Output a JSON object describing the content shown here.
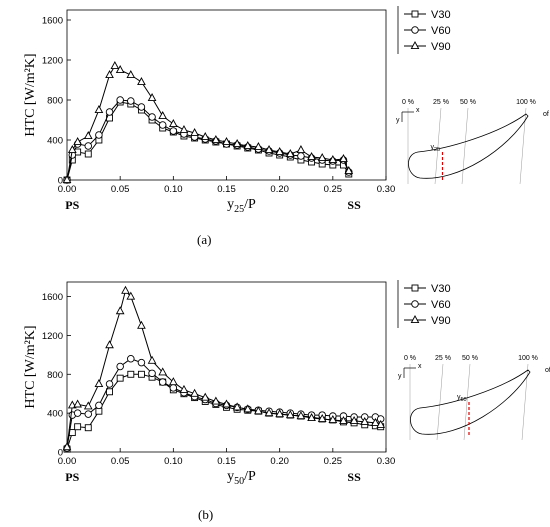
{
  "chart_data": [
    {
      "type": "line",
      "panel_label": "(a)",
      "ylabel": "HTC [W/m²K]",
      "xlabel_main": "y",
      "xlabel_sub": "25",
      "xlabel_tail": "/P",
      "ps_label": "PS",
      "ss_label": "SS",
      "xlim": [
        0,
        0.3
      ],
      "ylim": [
        0,
        1700
      ],
      "xticks": [
        "0.00",
        "0.05",
        "0.10",
        "0.15",
        "0.20",
        "0.25",
        "0.30"
      ],
      "yticks": [
        "0",
        "400",
        "800",
        "1200",
        "1600"
      ],
      "series": [
        {
          "name": "V30",
          "marker": "square",
          "x": [
            0,
            0.005,
            0.01,
            0.02,
            0.03,
            0.04,
            0.05,
            0.06,
            0.07,
            0.08,
            0.09,
            0.1,
            0.11,
            0.12,
            0.13,
            0.14,
            0.15,
            0.16,
            0.17,
            0.18,
            0.19,
            0.2,
            0.21,
            0.22,
            0.23,
            0.24,
            0.25,
            0.26,
            0.265
          ],
          "y": [
            0,
            200,
            280,
            260,
            400,
            620,
            780,
            760,
            700,
            600,
            520,
            480,
            440,
            420,
            400,
            380,
            360,
            340,
            320,
            300,
            270,
            250,
            230,
            200,
            180,
            160,
            150,
            150,
            60
          ]
        },
        {
          "name": "V60",
          "marker": "circle",
          "x": [
            0,
            0.005,
            0.01,
            0.02,
            0.03,
            0.04,
            0.05,
            0.06,
            0.07,
            0.08,
            0.09,
            0.1,
            0.11,
            0.12,
            0.13,
            0.14,
            0.15,
            0.16,
            0.17,
            0.18,
            0.19,
            0.2,
            0.21,
            0.22,
            0.23,
            0.24,
            0.25,
            0.26,
            0.265
          ],
          "y": [
            0,
            250,
            360,
            340,
            450,
            680,
            800,
            790,
            730,
            630,
            550,
            490,
            460,
            430,
            410,
            390,
            360,
            350,
            330,
            310,
            290,
            270,
            250,
            240,
            220,
            200,
            190,
            200,
            80
          ]
        },
        {
          "name": "V90",
          "marker": "triangle",
          "x": [
            0,
            0.005,
            0.01,
            0.02,
            0.03,
            0.04,
            0.045,
            0.05,
            0.06,
            0.07,
            0.08,
            0.09,
            0.1,
            0.11,
            0.12,
            0.13,
            0.14,
            0.15,
            0.16,
            0.17,
            0.18,
            0.19,
            0.2,
            0.21,
            0.22,
            0.23,
            0.24,
            0.25,
            0.26,
            0.265
          ],
          "y": [
            0,
            300,
            380,
            440,
            700,
            1050,
            1140,
            1100,
            1050,
            980,
            820,
            640,
            560,
            500,
            470,
            430,
            400,
            380,
            360,
            340,
            330,
            300,
            280,
            260,
            300,
            230,
            220,
            200,
            210,
            90
          ]
        }
      ],
      "inset": {
        "pct_labels": [
          "0 %",
          "25 %",
          "50 %",
          "100 %"
        ],
        "of_label": "of C",
        "of_sub": "x",
        "y_axis": "y",
        "x_axis": "x",
        "cut_label": "y",
        "cut_sub": "25",
        "cut_fraction": 0.25
      }
    },
    {
      "type": "line",
      "panel_label": "(b)",
      "ylabel": "HTC [W/m²K]",
      "xlabel_main": "y",
      "xlabel_sub": "50",
      "xlabel_tail": "/P",
      "ps_label": "PS",
      "ss_label": "SS",
      "xlim": [
        0,
        0.3
      ],
      "ylim": [
        0,
        1750
      ],
      "xticks": [
        "0.00",
        "0.05",
        "0.10",
        "0.15",
        "0.20",
        "0.25",
        "0.30"
      ],
      "yticks": [
        "0",
        "400",
        "800",
        "1200",
        "1600"
      ],
      "series": [
        {
          "name": "V30",
          "marker": "square",
          "x": [
            0,
            0.005,
            0.01,
            0.02,
            0.03,
            0.04,
            0.05,
            0.06,
            0.07,
            0.08,
            0.09,
            0.1,
            0.11,
            0.12,
            0.13,
            0.14,
            0.15,
            0.16,
            0.17,
            0.18,
            0.19,
            0.2,
            0.21,
            0.22,
            0.23,
            0.24,
            0.25,
            0.26,
            0.27,
            0.28,
            0.29,
            0.295
          ],
          "y": [
            30,
            200,
            260,
            250,
            420,
            620,
            760,
            800,
            800,
            770,
            720,
            640,
            600,
            560,
            520,
            490,
            460,
            440,
            430,
            420,
            400,
            390,
            380,
            370,
            360,
            340,
            330,
            310,
            300,
            280,
            270,
            260
          ]
        },
        {
          "name": "V60",
          "marker": "circle",
          "x": [
            0,
            0.005,
            0.01,
            0.02,
            0.03,
            0.04,
            0.05,
            0.06,
            0.07,
            0.08,
            0.09,
            0.1,
            0.11,
            0.12,
            0.13,
            0.14,
            0.15,
            0.16,
            0.17,
            0.18,
            0.19,
            0.2,
            0.21,
            0.22,
            0.23,
            0.24,
            0.25,
            0.26,
            0.27,
            0.28,
            0.29,
            0.295
          ],
          "y": [
            40,
            380,
            400,
            390,
            480,
            700,
            880,
            960,
            920,
            810,
            720,
            660,
            610,
            570,
            540,
            500,
            480,
            460,
            440,
            430,
            420,
            410,
            400,
            390,
            380,
            380,
            370,
            370,
            360,
            360,
            360,
            340
          ]
        },
        {
          "name": "V90",
          "marker": "triangle",
          "x": [
            0,
            0.005,
            0.01,
            0.02,
            0.03,
            0.04,
            0.05,
            0.055,
            0.06,
            0.07,
            0.08,
            0.09,
            0.1,
            0.11,
            0.12,
            0.13,
            0.14,
            0.15,
            0.16,
            0.17,
            0.18,
            0.19,
            0.2,
            0.21,
            0.22,
            0.23,
            0.24,
            0.25,
            0.26,
            0.27,
            0.28,
            0.29,
            0.295
          ],
          "y": [
            50,
            480,
            490,
            470,
            700,
            1100,
            1450,
            1660,
            1600,
            1300,
            940,
            820,
            720,
            640,
            600,
            560,
            520,
            490,
            460,
            440,
            420,
            400,
            390,
            380,
            370,
            350,
            340,
            330,
            320,
            320,
            310,
            300,
            280
          ]
        }
      ],
      "inset": {
        "pct_labels": [
          "0 %",
          "25 %",
          "50 %",
          "100 %"
        ],
        "of_label": "of C",
        "of_sub": "x",
        "y_axis": "y",
        "x_axis": "x",
        "cut_label": "y",
        "cut_sub": "50",
        "cut_fraction": 0.5
      }
    }
  ]
}
